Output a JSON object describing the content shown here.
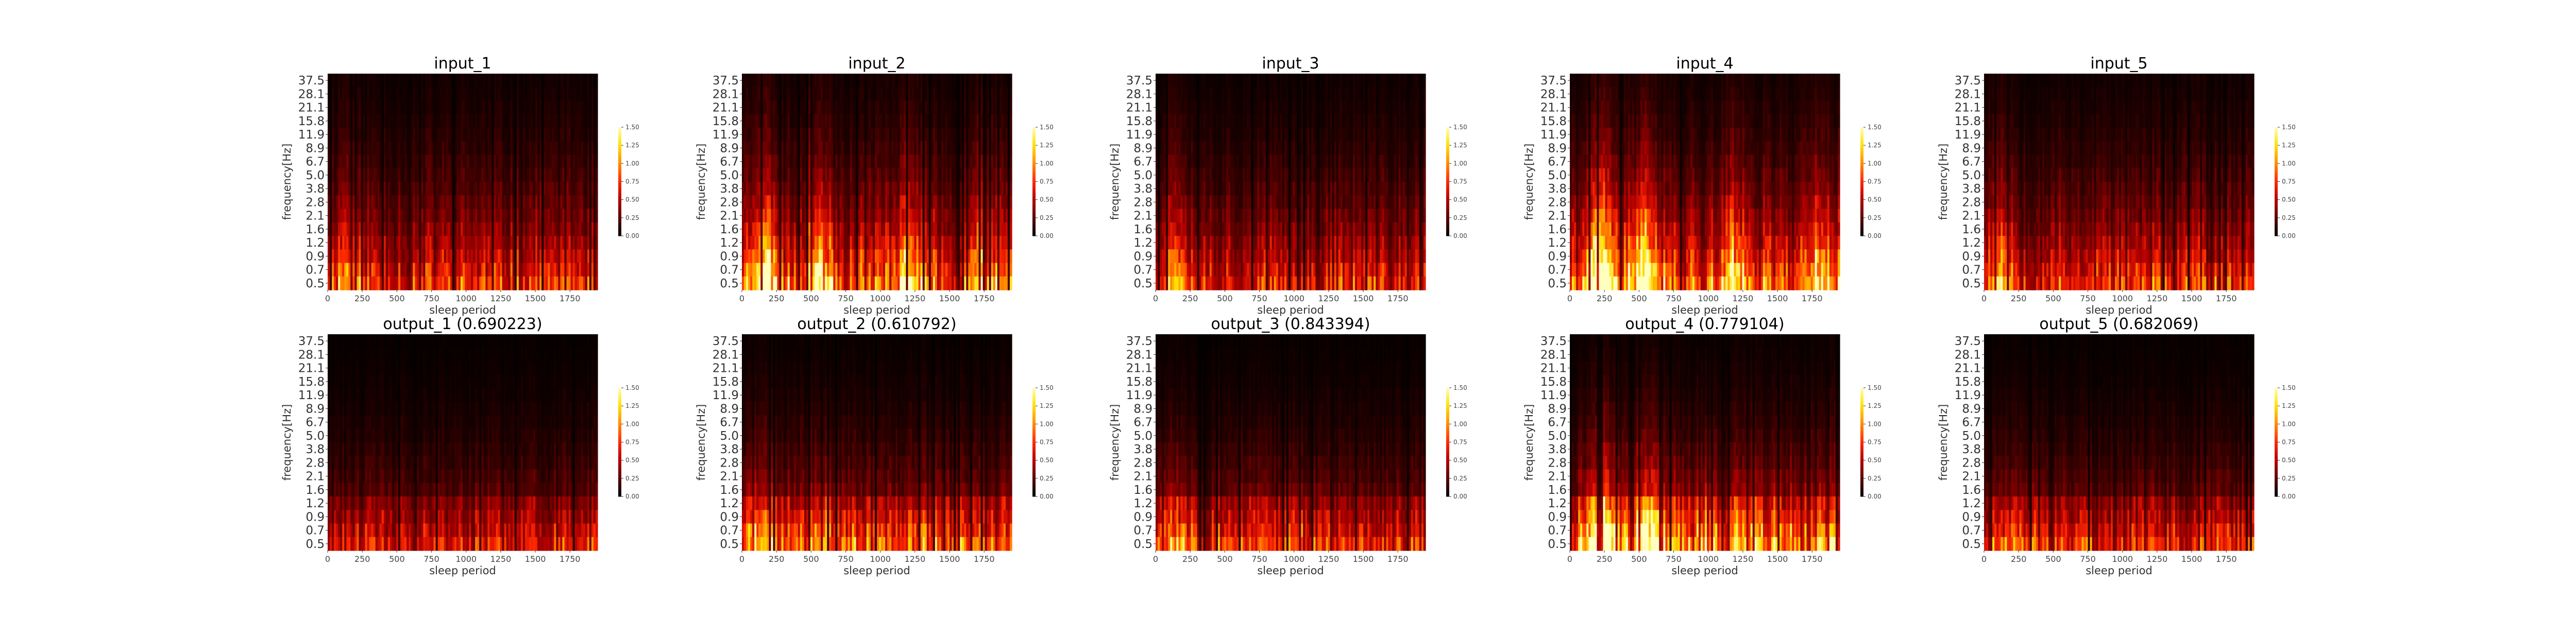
{
  "chart_data": {
    "type": "heatmap",
    "layout": "2 rows x 5 columns of spectrogram panels",
    "shared": {
      "ylabel": "frequency[Hz]",
      "xlabel": "sleep period",
      "yticks": [
        "37.5",
        "28.1",
        "21.1",
        "15.8",
        "11.9",
        "8.9",
        "6.7",
        "5.0",
        "3.8",
        "2.8",
        "2.1",
        "1.6",
        "1.2",
        "0.9",
        "0.7",
        "0.5"
      ],
      "xticks": [
        0,
        250,
        500,
        750,
        1000,
        1250,
        1500,
        1750
      ],
      "xlim": [
        0,
        1950
      ],
      "colorbar": {
        "ticks": [
          "0.00",
          "0.25",
          "0.50",
          "0.75",
          "1.00",
          "1.25",
          "1.50"
        ],
        "vmin": 0,
        "vmax": 1.5,
        "colormap": "hot"
      },
      "colormap_stops": [
        "#000000",
        "#5a0000",
        "#b40000",
        "#ff2a00",
        "#ff8c00",
        "#ffe000",
        "#ffffc0"
      ]
    },
    "panels": [
      {
        "title": "input_1",
        "row": 0,
        "col": 0,
        "low_intensity": 0.85,
        "seed": 11,
        "banded": false,
        "bursts": [
          [
            150,
            0.6
          ]
        ]
      },
      {
        "title": "input_2",
        "row": 0,
        "col": 1,
        "low_intensity": 1.05,
        "seed": 23,
        "banded": false,
        "bursts": [
          [
            150,
            0.9
          ],
          [
            550,
            0.7
          ],
          [
            1200,
            0.6
          ],
          [
            1700,
            0.5
          ]
        ]
      },
      {
        "title": "input_3",
        "row": 0,
        "col": 2,
        "low_intensity": 0.8,
        "seed": 37,
        "banded": false,
        "bursts": [
          [
            150,
            0.8
          ]
        ]
      },
      {
        "title": "input_4",
        "row": 0,
        "col": 3,
        "low_intensity": 1.05,
        "seed": 41,
        "banded": false,
        "bursts": [
          [
            230,
            1.2
          ],
          [
            550,
            1.1
          ],
          [
            1200,
            0.6
          ],
          [
            1800,
            0.6
          ]
        ]
      },
      {
        "title": "input_5",
        "row": 0,
        "col": 4,
        "low_intensity": 0.85,
        "seed": 53,
        "banded": false,
        "bursts": [
          [
            120,
            0.8
          ]
        ]
      },
      {
        "title": "output_1 (0.690223)",
        "row": 1,
        "col": 0,
        "low_intensity": 0.55,
        "seed": 61,
        "banded": true,
        "bursts": []
      },
      {
        "title": "output_2 (0.610792)",
        "row": 1,
        "col": 1,
        "low_intensity": 0.75,
        "seed": 71,
        "banded": true,
        "bursts": [
          [
            150,
            0.4
          ],
          [
            550,
            0.3
          ]
        ]
      },
      {
        "title": "output_3 (0.843394)",
        "row": 1,
        "col": 2,
        "low_intensity": 0.65,
        "seed": 83,
        "banded": true,
        "bursts": [
          [
            150,
            0.4
          ]
        ]
      },
      {
        "title": "output_4 (0.779104)",
        "row": 1,
        "col": 3,
        "low_intensity": 0.9,
        "seed": 97,
        "banded": true,
        "bursts": [
          [
            230,
            1.1
          ],
          [
            550,
            0.9
          ]
        ]
      },
      {
        "title": "output_5 (0.682069)",
        "row": 1,
        "col": 4,
        "low_intensity": 0.6,
        "seed": 103,
        "banded": true,
        "bursts": [
          [
            150,
            0.3
          ]
        ]
      }
    ]
  }
}
